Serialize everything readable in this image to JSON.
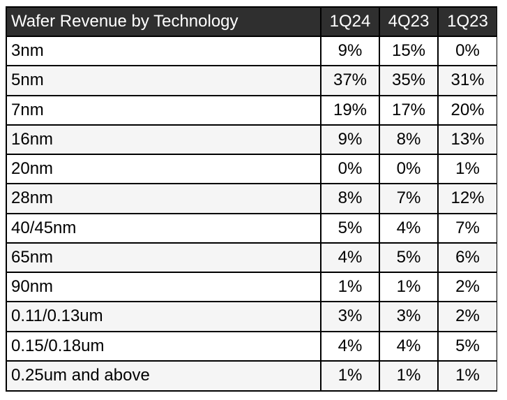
{
  "chart_data": {
    "type": "table",
    "title": "Wafer Revenue by Technology",
    "columns": [
      "1Q24",
      "4Q23",
      "1Q23"
    ],
    "unit": "%",
    "rows": [
      {
        "label": "3nm",
        "values": [
          9,
          15,
          0
        ],
        "display": [
          "9%",
          "15%",
          "0%"
        ]
      },
      {
        "label": "5nm",
        "values": [
          37,
          35,
          31
        ],
        "display": [
          "37%",
          "35%",
          "31%"
        ]
      },
      {
        "label": "7nm",
        "values": [
          19,
          17,
          20
        ],
        "display": [
          "19%",
          "17%",
          "20%"
        ]
      },
      {
        "label": "16nm",
        "values": [
          9,
          8,
          13
        ],
        "display": [
          "9%",
          "8%",
          "13%"
        ]
      },
      {
        "label": "20nm",
        "values": [
          0,
          0,
          1
        ],
        "display": [
          "0%",
          "0%",
          "1%"
        ]
      },
      {
        "label": "28nm",
        "values": [
          8,
          7,
          12
        ],
        "display": [
          "8%",
          "7%",
          "12%"
        ]
      },
      {
        "label": "40/45nm",
        "values": [
          5,
          4,
          7
        ],
        "display": [
          "5%",
          "4%",
          "7%"
        ]
      },
      {
        "label": "65nm",
        "values": [
          4,
          5,
          6
        ],
        "display": [
          "4%",
          "5%",
          "6%"
        ]
      },
      {
        "label": "90nm",
        "values": [
          1,
          1,
          2
        ],
        "display": [
          "1%",
          "1%",
          "2%"
        ]
      },
      {
        "label": "0.11/0.13um",
        "values": [
          3,
          3,
          2
        ],
        "display": [
          "3%",
          "3%",
          "2%"
        ]
      },
      {
        "label": "0.15/0.18um",
        "values": [
          4,
          4,
          5
        ],
        "display": [
          "4%",
          "4%",
          "5%"
        ]
      },
      {
        "label": "0.25um and above",
        "values": [
          1,
          1,
          1
        ],
        "display": [
          "1%",
          "1%",
          "1%"
        ]
      }
    ]
  },
  "colors": {
    "header_bg": "#2f2f2f",
    "header_text": "#ffffff",
    "grid": "#000000",
    "row_alt": "#f5f5f5"
  }
}
